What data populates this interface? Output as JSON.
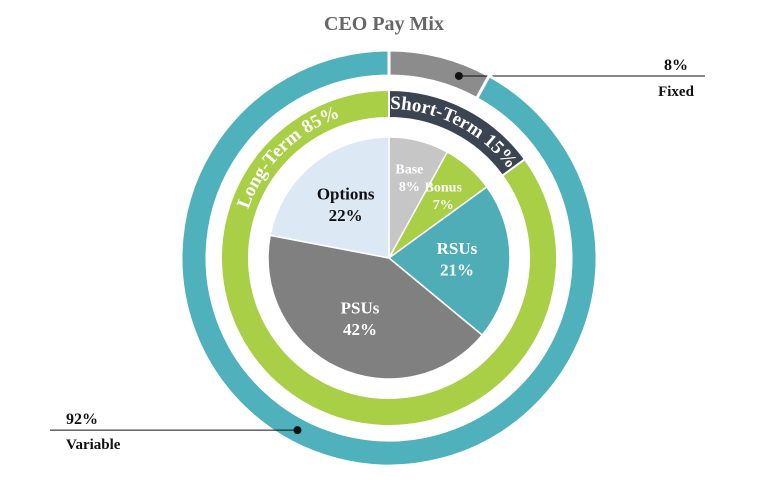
{
  "chart_data": {
    "type": "pie",
    "title": "CEO Pay Mix",
    "rings": [
      {
        "categories": [
          "Base",
          "Bonus",
          "RSUs",
          "PSUs",
          "Options"
        ],
        "values": [
          8,
          7,
          21,
          42,
          22
        ],
        "value_labels": [
          "8%",
          "7%",
          "21%",
          "42%",
          "22%"
        ],
        "colors": [
          "#c6c6c6",
          "#a9cf46",
          "#4fadb8",
          "#808080",
          "#dce9f4"
        ]
      },
      {
        "categories": [
          "Short-Term",
          "Long-Term"
        ],
        "values": [
          15,
          85
        ],
        "value_labels": [
          "15%",
          "85%"
        ],
        "colors": [
          "#3b4451",
          "#a9cf46"
        ]
      },
      {
        "categories": [
          "Fixed",
          "Variable"
        ],
        "values": [
          8,
          92
        ],
        "value_labels": [
          "8%",
          "92%"
        ],
        "colors": [
          "#8c8c8c",
          "#4fb1bc"
        ]
      }
    ]
  }
}
